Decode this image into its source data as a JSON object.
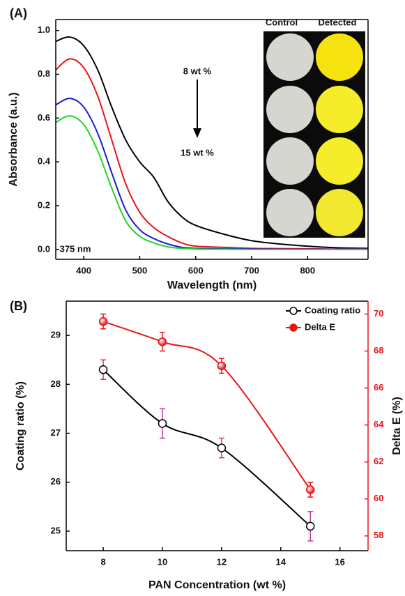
{
  "chart_data": [
    {
      "type": "line",
      "panel_label": "(A)",
      "xlabel": "Wavelength (nm)",
      "ylabel": "Absorbance (a.u.)",
      "x": [
        350,
        375,
        400,
        425,
        450,
        475,
        500,
        525,
        550,
        575,
        600,
        650,
        700,
        750,
        800,
        850,
        908
      ],
      "xlim": [
        350,
        908
      ],
      "ylim": [
        -0.045,
        1.05
      ],
      "xticks": [
        400,
        500,
        600,
        700,
        800
      ],
      "yticks": [
        {
          "value": 0,
          "label": "0.0"
        },
        0.2,
        0.4,
        0.6,
        0.8,
        {
          "value": 1,
          "label": "1.0"
        }
      ],
      "series": [
        {
          "color": "#000000",
          "values": [
            0.95,
            0.97,
            0.93,
            0.82,
            0.65,
            0.5,
            0.4,
            0.33,
            0.22,
            0.15,
            0.11,
            0.07,
            0.04,
            0.025,
            0.015,
            0.008,
            0.005
          ]
        },
        {
          "color": "#e8141a",
          "values": [
            0.82,
            0.87,
            0.83,
            0.7,
            0.5,
            0.3,
            0.17,
            0.1,
            0.06,
            0.03,
            0.015,
            0.01,
            0.005,
            0.004,
            0.003,
            0.002,
            0.002
          ]
        },
        {
          "color": "#1a1adb",
          "values": [
            0.66,
            0.69,
            0.65,
            0.53,
            0.35,
            0.18,
            0.09,
            0.05,
            0.025,
            0.01,
            0.005,
            0.003,
            0.002,
            0.001,
            0.001,
            0.001,
            0.001
          ]
        },
        {
          "color": "#22d422",
          "values": [
            0.58,
            0.61,
            0.57,
            0.45,
            0.28,
            0.13,
            0.06,
            0.03,
            0.012,
            0.005,
            0.002,
            0.001,
            0,
            0,
            0,
            0,
            0
          ]
        }
      ],
      "annotations": [
        "8 wt %",
        "15 wt %",
        "375 nm",
        "Control",
        "Detected"
      ]
    },
    {
      "type": "line",
      "panel_label": "(B)",
      "xlabel": "PAN Concentration (wt %)",
      "ylabel": "Coating ratio (%)",
      "y2label": "Delta E (%)",
      "x": [
        8,
        10,
        12,
        15
      ],
      "xlim": [
        6.75,
        16.95
      ],
      "ylim": [
        24.6,
        29.7
      ],
      "y2lim": [
        57.2,
        70.7
      ],
      "xticks": [
        8,
        10,
        12,
        14,
        16
      ],
      "yticks": [
        25,
        26,
        27,
        28,
        29
      ],
      "y2ticks": [
        58,
        60,
        62,
        64,
        66,
        68,
        70
      ],
      "legend": "upper right",
      "series": [
        {
          "name": "Coating ratio",
          "color": "#000000",
          "marker": "open",
          "error_color": "#c0399b",
          "values": [
            28.3,
            27.2,
            26.7,
            25.1
          ],
          "errors": [
            0.2,
            0.3,
            0.2,
            0.3
          ]
        },
        {
          "name": "Delta E",
          "color": "#e8141a",
          "marker": "filled",
          "error_color": "#e8141a",
          "axis": "y2",
          "values": [
            69.6,
            68.5,
            67.2,
            60.5
          ],
          "errors": [
            0.4,
            0.5,
            0.4,
            0.4
          ]
        }
      ]
    }
  ]
}
